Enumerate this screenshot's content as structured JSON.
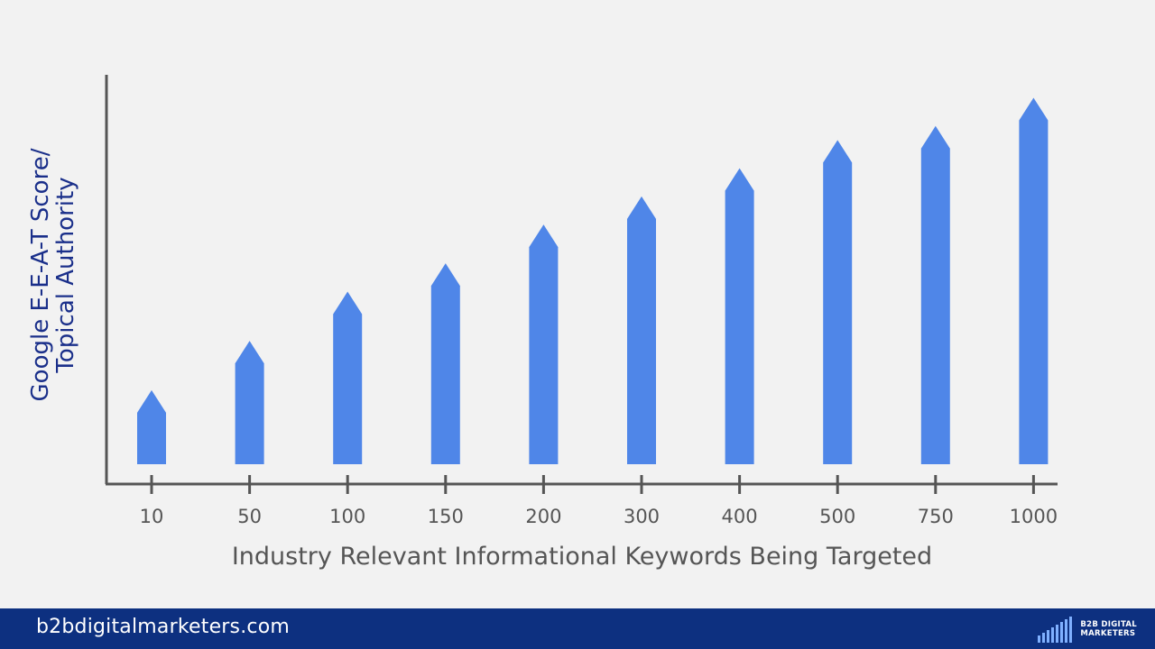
{
  "chart_data": {
    "type": "bar",
    "categories": [
      "10",
      "50",
      "100",
      "150",
      "200",
      "300",
      "400",
      "500",
      "750",
      "1000"
    ],
    "values": [
      2.1,
      3.5,
      4.9,
      5.7,
      6.8,
      7.6,
      8.4,
      9.2,
      9.6,
      10.4
    ],
    "title": "",
    "xlabel": "Industry Relevant Informational Keywords Being Targeted",
    "ylabel_lines": [
      "Google E-E-A-T Score/",
      "Topical Authority"
    ],
    "ylim": [
      0,
      11
    ],
    "y_ticks_shown": false,
    "grid": false,
    "legend": "none",
    "bar_style": "arrow",
    "bar_color": "#4f86e8"
  },
  "footer": {
    "url": "b2bdigitalmarketers.com",
    "logo_line1": "B2B DIGITAL",
    "logo_line2": "MARKETERS",
    "background_color": "#0d3080"
  },
  "colors": {
    "background": "#f2f2f2",
    "axis": "#555555",
    "ylabel": "#1a2f8a"
  }
}
